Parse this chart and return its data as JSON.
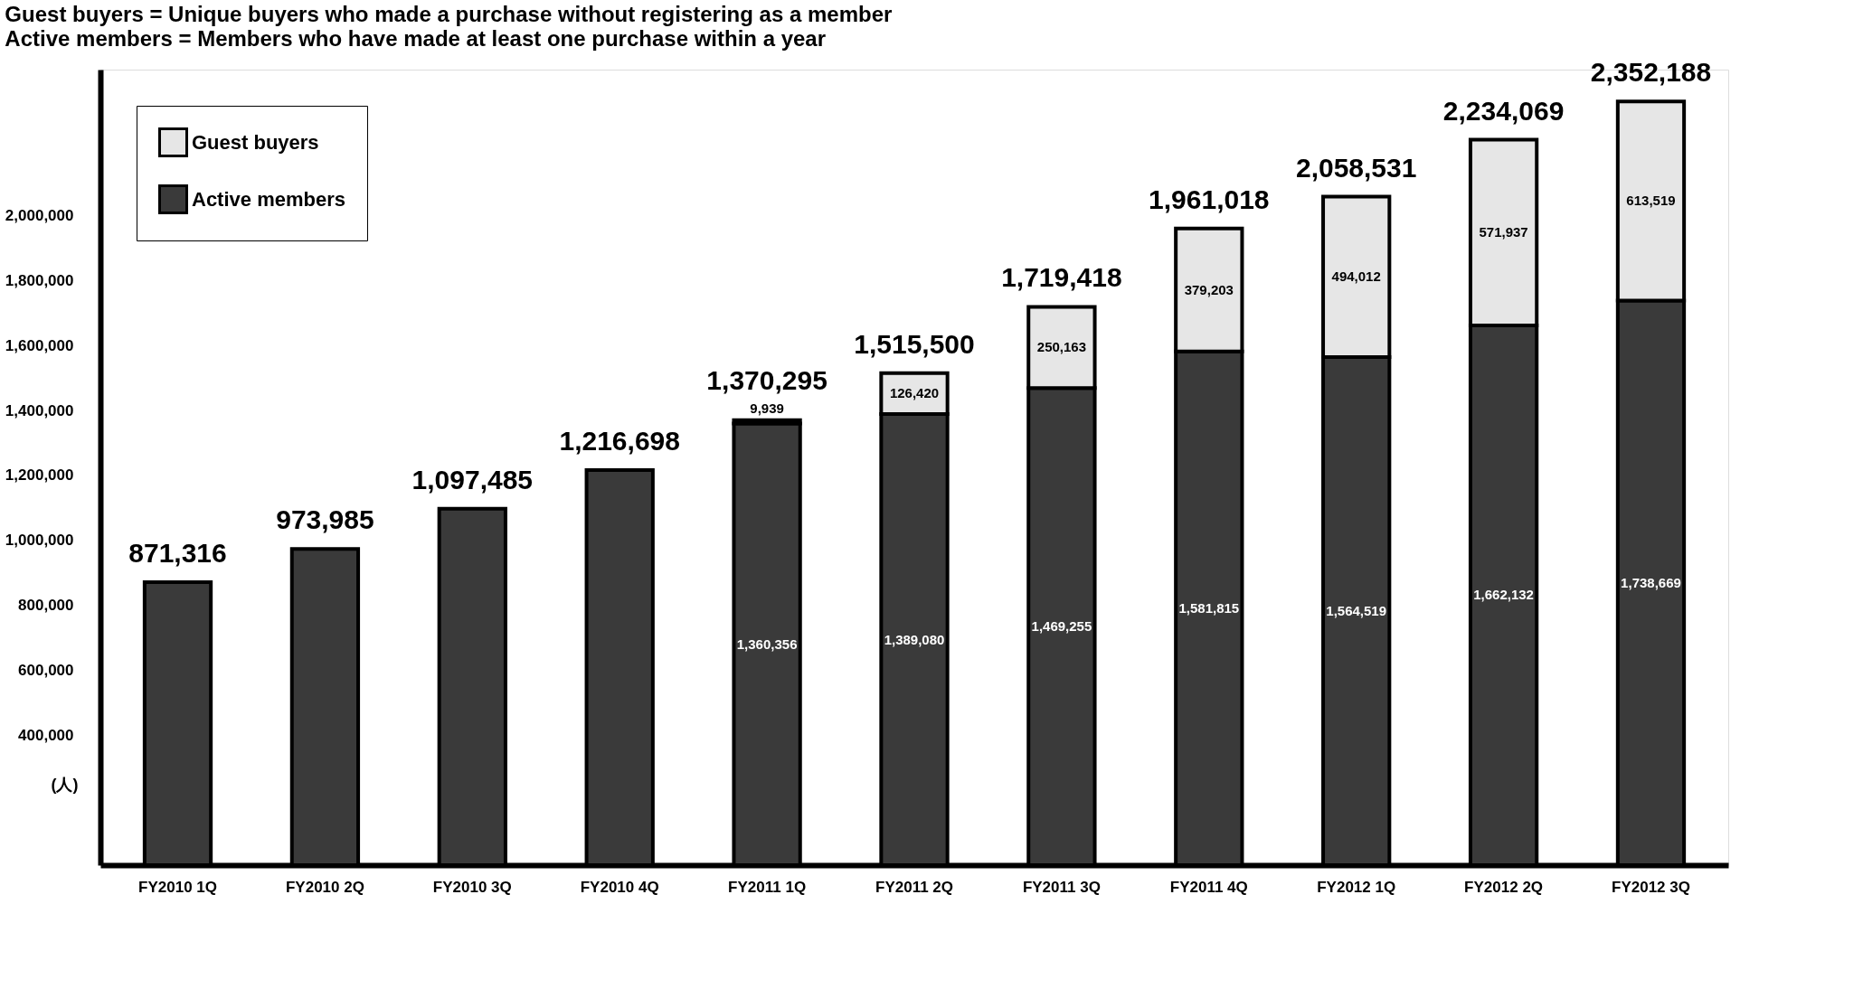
{
  "chart_data": {
    "type": "bar",
    "stacked": true,
    "title": "Guest buyers = Unique buyers who made a purchase without registering as a member",
    "subtitle": "Active members = Members who have made at least one purchase within a year",
    "ylabel": "(人)",
    "categories": [
      "FY2010 1Q",
      "FY2010 2Q",
      "FY2010 3Q",
      "FY2010 4Q",
      "FY2011 1Q",
      "FY2011 2Q",
      "FY2011 3Q",
      "FY2011 4Q",
      "FY2012 1Q",
      "FY2012 2Q",
      "FY2012 3Q"
    ],
    "series": [
      {
        "name": "Active members",
        "color": "#3a3a3a",
        "values": [
          871316,
          973985,
          1097485,
          1216698,
          1360356,
          1389080,
          1469255,
          1581815,
          1564519,
          1662132,
          1738669
        ],
        "value_labels": [
          null,
          null,
          null,
          null,
          "1,360,356",
          "1,389,080",
          "1,469,255",
          "1,581,815",
          "1,564,519",
          "1,662,132",
          "1,738,669"
        ]
      },
      {
        "name": "Guest buyers",
        "color": "#e6e6e6",
        "values": [
          null,
          null,
          null,
          null,
          9939,
          126420,
          250163,
          379203,
          494012,
          571937,
          613519
        ],
        "value_labels": [
          null,
          null,
          null,
          null,
          "9,939",
          "126,420",
          "250,163",
          "379,203",
          "494,012",
          "571,937",
          "613,519"
        ]
      }
    ],
    "totals": [
      "871,316",
      "973,985",
      "1,097,485",
      "1,216,698",
      "1,370,295",
      "1,515,500",
      "1,719,418",
      "1,961,018",
      "2,058,531",
      "2,234,069",
      "2,352,188"
    ],
    "ylim": [
      0,
      2450000
    ],
    "yticks": [
      {
        "value": 400000,
        "label": "400,000"
      },
      {
        "value": 600000,
        "label": "600,000"
      },
      {
        "value": 800000,
        "label": "800,000"
      },
      {
        "value": 1000000,
        "label": "1,000,000"
      },
      {
        "value": 1200000,
        "label": "1,200,000"
      },
      {
        "value": 1400000,
        "label": "1,400,000"
      },
      {
        "value": 1600000,
        "label": "1,600,000"
      },
      {
        "value": 1800000,
        "label": "1,800,000"
      },
      {
        "value": 2000000,
        "label": "2,000,000"
      }
    ],
    "legend": "top left",
    "grid": false
  }
}
